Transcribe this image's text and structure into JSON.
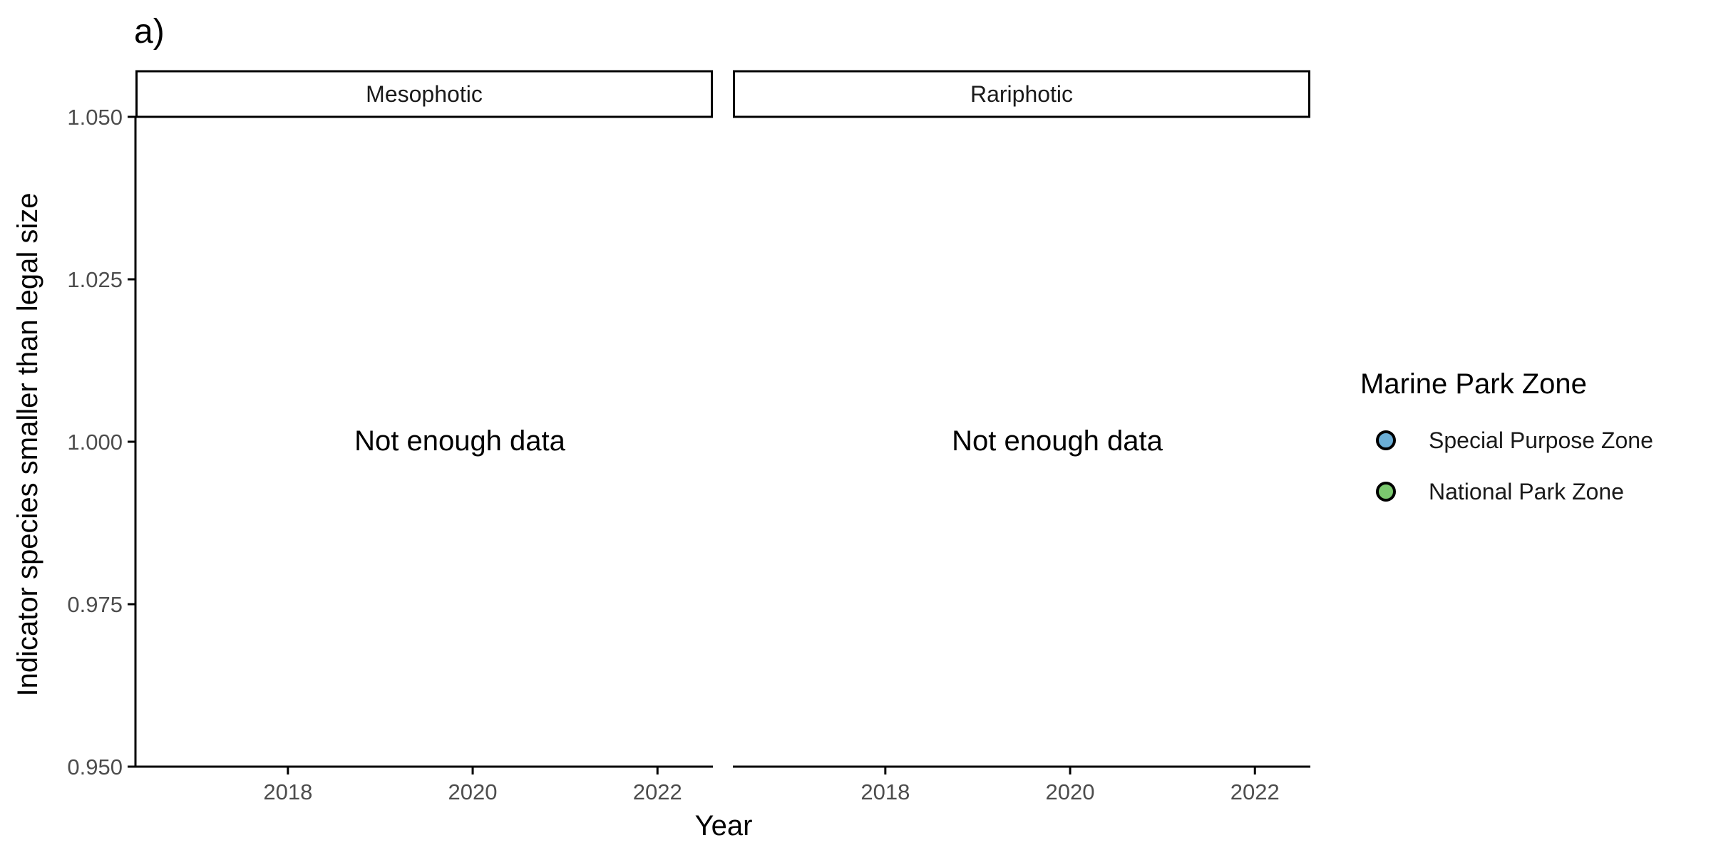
{
  "chart_data": {
    "type": "scatter",
    "panel_tag": "a)",
    "xlabel": "Year",
    "ylabel": "Indicator species smaller than legal size",
    "xlim": [
      2016.35,
      2022.6
    ],
    "ylim": [
      0.95,
      1.05
    ],
    "x_ticks": [
      2018,
      2020,
      2022
    ],
    "y_ticks": [
      0.95,
      0.975,
      1.0,
      1.025,
      1.05
    ],
    "y_tick_labels": [
      "0.950",
      "0.975",
      "1.000",
      "1.025",
      "1.050"
    ],
    "grid": false,
    "legend": {
      "title": "Marine Park Zone",
      "placement": "right",
      "entries": [
        {
          "name": "Special Purpose Zone",
          "color": "#6BAED6"
        },
        {
          "name": "National Park Zone",
          "color": "#7BC96F"
        }
      ]
    },
    "facets": [
      {
        "label": "Mesophotic",
        "annotation": "Not enough data",
        "points": []
      },
      {
        "label": "Rariphotic",
        "annotation": "Not enough data",
        "points": []
      }
    ]
  }
}
